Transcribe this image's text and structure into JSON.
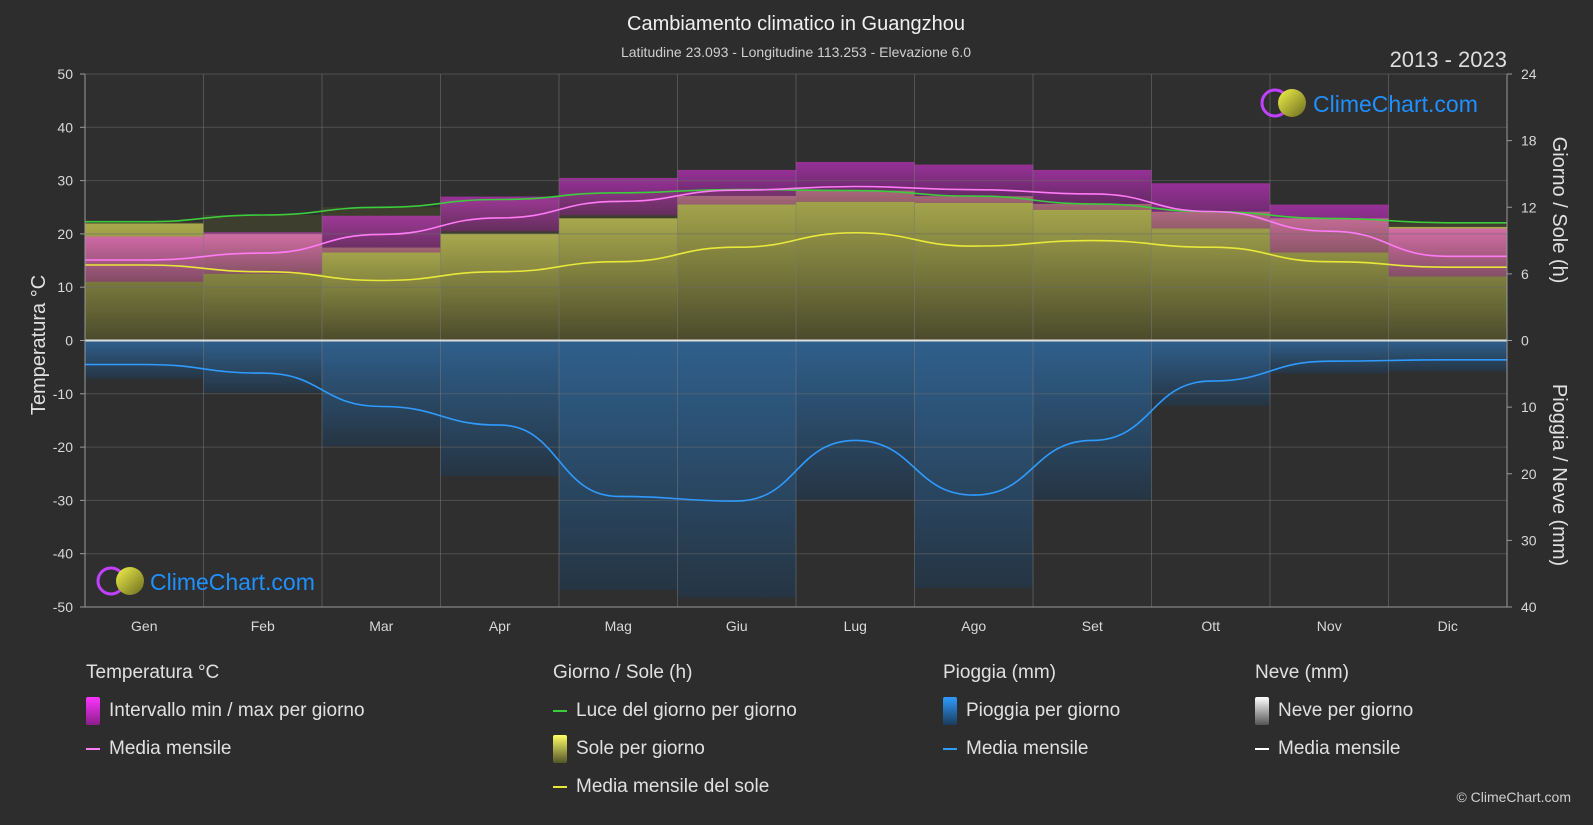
{
  "header": {
    "title": "Cambiamento climatico in Guangzhou",
    "subtitle": "Latitudine 23.093 - Longitudine 113.253 - Elevazione 6.0",
    "year_range": "2013 - 2023"
  },
  "brand": {
    "name": "ClimeChart.com",
    "copyright": "© ClimeChart.com"
  },
  "colors": {
    "background": "#2d2d2d",
    "temp_range": "#d63cd6",
    "temp_mean": "#ff7af5",
    "daylight": "#3ccc3c",
    "sun_fill": "#a6a63a",
    "sun_mean": "#e8e83a",
    "rain_fill": "#2a6fa8",
    "rain_mean": "#2f9bff",
    "snow_mean": "#ffffff",
    "brand_text": "#1e90ff"
  },
  "chart_data": {
    "type": "line",
    "x_categories": [
      "Gen",
      "Feb",
      "Mar",
      "Apr",
      "Mag",
      "Giu",
      "Lug",
      "Ago",
      "Set",
      "Ott",
      "Nov",
      "Dic"
    ],
    "left_axis": {
      "label": "Temperatura °C",
      "range": [
        -50,
        50
      ],
      "ticks": [
        "50",
        "40",
        "30",
        "20",
        "10",
        "0",
        "-10",
        "-20",
        "-30",
        "-40",
        "-50"
      ]
    },
    "right_axis_top": {
      "label": "Giorno / Sole (h)",
      "range": [
        0,
        24
      ],
      "ticks": [
        "24",
        "18",
        "12",
        "6",
        "0"
      ]
    },
    "right_axis_bottom": {
      "label": "Pioggia / Neve (mm)",
      "range": [
        0,
        40
      ],
      "ticks": [
        "0",
        "10",
        "20",
        "30",
        "40"
      ]
    },
    "grid": true,
    "series": [
      {
        "name": "Luce del giorno per giorno",
        "axis": "hours",
        "values": [
          10.7,
          11.3,
          12.0,
          12.7,
          13.3,
          13.6,
          13.5,
          13.0,
          12.3,
          11.6,
          11.0,
          10.6
        ]
      },
      {
        "name": "Media mensile del sole",
        "axis": "hours",
        "values": [
          6.8,
          6.2,
          5.4,
          6.2,
          7.1,
          8.4,
          9.7,
          8.5,
          9.0,
          8.4,
          7.1,
          6.6
        ]
      },
      {
        "name": "Media mensile",
        "role": "temperature",
        "axis": "temperature",
        "values": [
          15.1,
          16.4,
          19.9,
          23.0,
          26.1,
          28.2,
          28.9,
          28.3,
          27.5,
          24.2,
          20.5,
          15.8
        ]
      },
      {
        "name": "Temperatura max giornaliera",
        "axis": "temperature",
        "values": [
          19.5,
          20.3,
          23.4,
          27.0,
          30.5,
          32.0,
          33.5,
          33.0,
          32.0,
          29.5,
          25.5,
          21.0
        ]
      },
      {
        "name": "Temperatura min giornaliera",
        "axis": "temperature",
        "values": [
          11.0,
          12.5,
          16.5,
          20.5,
          23.5,
          25.5,
          26.0,
          25.8,
          24.5,
          21.0,
          16.5,
          12.0
        ]
      },
      {
        "name": "Media mensile",
        "role": "rain",
        "axis": "rain",
        "values": [
          3.6,
          4.9,
          9.9,
          12.7,
          23.4,
          24.1,
          15.0,
          23.2,
          15.0,
          6.1,
          3.1,
          2.9
        ]
      },
      {
        "name": "Media mensile",
        "role": "snow",
        "axis": "rain",
        "values": [
          0,
          0,
          0,
          0,
          0,
          0,
          0,
          0,
          0,
          0,
          0,
          0
        ]
      }
    ]
  },
  "legend": {
    "temperature": {
      "heading": "Temperatura °C",
      "items": [
        "Intervallo min / max per giorno",
        "Media mensile"
      ]
    },
    "sun": {
      "heading": "Giorno / Sole (h)",
      "items": [
        "Luce del giorno per giorno",
        "Sole per giorno",
        "Media mensile del sole"
      ]
    },
    "rain": {
      "heading": "Pioggia (mm)",
      "items": [
        "Pioggia per giorno",
        "Media mensile"
      ]
    },
    "snow": {
      "heading": "Neve (mm)",
      "items": [
        "Neve per giorno",
        "Media mensile"
      ]
    }
  }
}
